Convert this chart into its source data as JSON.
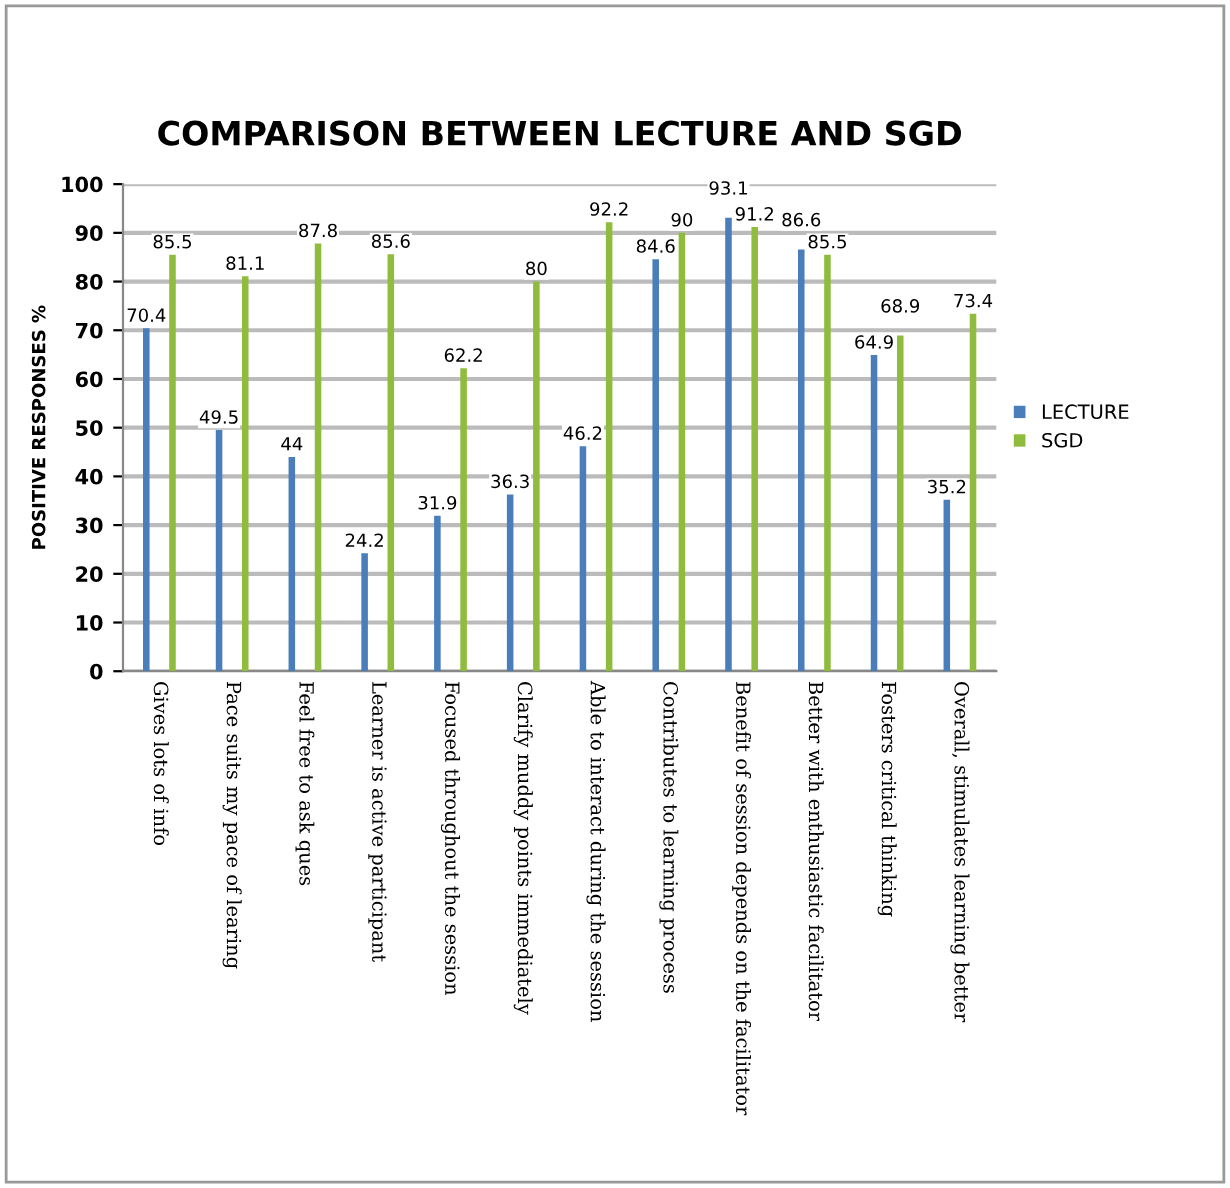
{
  "chart_data": {
    "type": "bar",
    "title": "COMPARISON BETWEEN LECTURE AND SGD",
    "ylabel": "POSITIVE RESPONSES %",
    "categories": [
      "Gives lots of info",
      "Pace suits my pace of learing",
      "Feel free to ask ques",
      "Learner is active participant",
      "Focused throughout the session",
      "Clarify muddy points immediately",
      "Able to interact during the session",
      "Contributes to learning process",
      "Benefit of session depends on the facilitator",
      "Better with enthusiastic facilitator",
      "Fosters critical thinking",
      "Overall, stimulates learning better"
    ],
    "series": [
      {
        "name": "LECTURE",
        "color": "#4a7ebb",
        "values": [
          70.4,
          49.5,
          44,
          24.2,
          31.9,
          36.3,
          46.2,
          84.6,
          93.1,
          86.6,
          64.9,
          35.2
        ]
      },
      {
        "name": "SGD",
        "color": "#8fbc3c",
        "values": [
          85.5,
          81.1,
          87.8,
          85.6,
          62.2,
          80,
          92.2,
          90,
          91.2,
          85.5,
          68.9,
          73.4
        ]
      }
    ],
    "ylim": [
      0,
      100
    ],
    "yticks": [
      0,
      10,
      20,
      30,
      40,
      50,
      60,
      70,
      80,
      90,
      100
    ],
    "grid": "y",
    "legend": "right",
    "data_labels": true
  }
}
